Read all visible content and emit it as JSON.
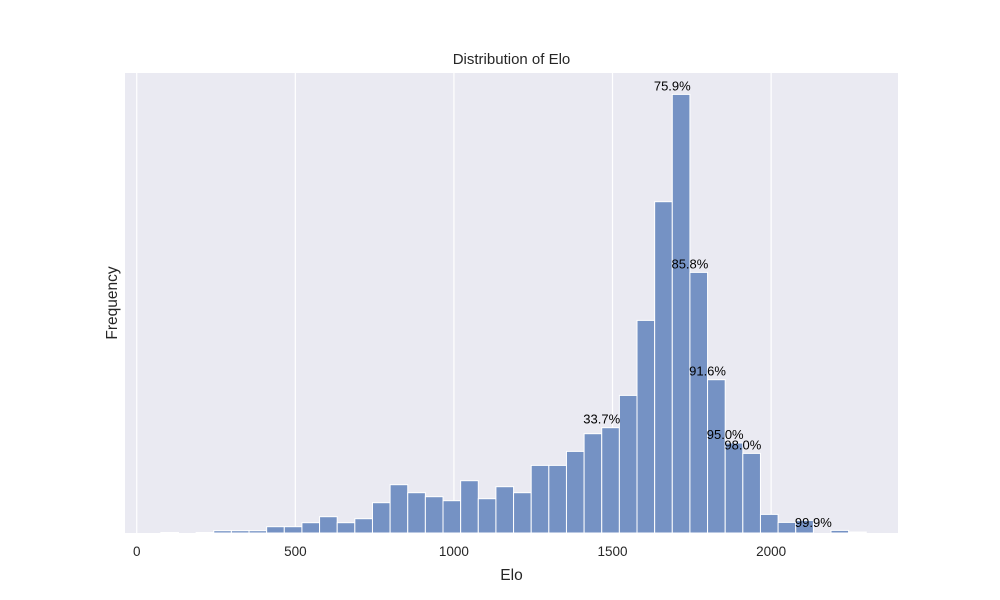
{
  "chart_data": {
    "type": "bar",
    "title": "Distribution of Elo",
    "xlabel": "Elo",
    "ylabel": "Frequency",
    "xlim": [
      -37,
      2400
    ],
    "ylim": [
      0,
      460
    ],
    "x_ticks": [
      0,
      500,
      1000,
      1500,
      2000
    ],
    "x_tick_labels": [
      "0",
      "500",
      "1000",
      "1500",
      "2000"
    ],
    "y_ticks_shown": false,
    "grid": "vertical",
    "bin_start": 76,
    "bin_width": 55.6,
    "counts": [
      0.5,
      0,
      0.5,
      2.3,
      2.3,
      2.3,
      6.3,
      6.3,
      10.3,
      16.3,
      10.3,
      14.3,
      30.3,
      48.3,
      40.3,
      36.3,
      32.3,
      52.3,
      34.3,
      46.3,
      40.3,
      67.6,
      67.6,
      81.6,
      99.3,
      105.3,
      137.6,
      212.6,
      331.3,
      438.6,
      260.6,
      153.3,
      90,
      79.6,
      18.6,
      10.6,
      12.6,
      0,
      2.6,
      1
    ],
    "annotations": [
      {
        "bin": 25,
        "text": "33.7%"
      },
      {
        "bin": 29,
        "text": "75.9%"
      },
      {
        "bin": 30,
        "text": "85.8%"
      },
      {
        "bin": 31,
        "text": "91.6%"
      },
      {
        "bin": 32,
        "text": "95.0%"
      },
      {
        "bin": 33,
        "text": "98.0%"
      },
      {
        "bin": 37,
        "text": "99.9%"
      }
    ],
    "colors": {
      "background": "#eaeaf2",
      "bar": "#7592c4",
      "grid": "#ffffff"
    }
  }
}
